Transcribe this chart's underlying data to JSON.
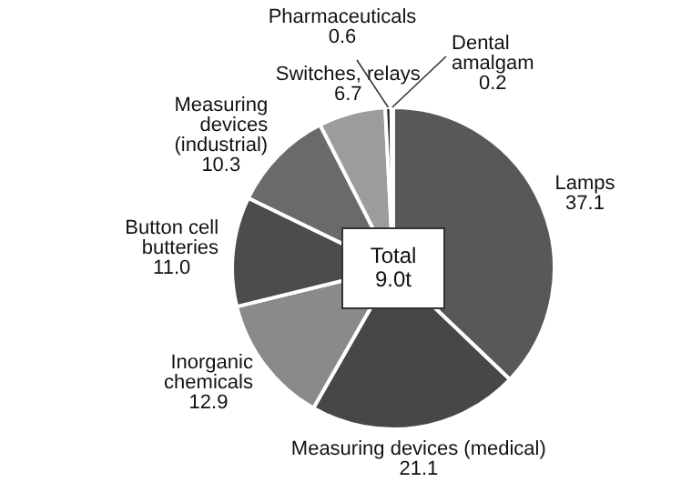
{
  "chart_data": {
    "type": "pie",
    "categories": [
      "Lamps",
      "Measuring devices (medical)",
      "Inorganic chemicals",
      "Button cell butteries",
      "Measuring devices (industrial)",
      "Switches, relays",
      "Pharmaceuticals",
      "Dental amalgam"
    ],
    "values": [
      37.1,
      21.1,
      12.9,
      11.0,
      10.3,
      6.7,
      0.6,
      0.2
    ],
    "colors": [
      "#585858",
      "#474747",
      "#8a8a8a",
      "#4c4c4c",
      "#6a6a6a",
      "#9c9c9c",
      "#222222",
      "#b0b0b0"
    ],
    "value_labels": [
      "37.1",
      "21.1",
      "12.9",
      "11.0",
      "10.3",
      "6.7",
      "0.6",
      "0.2"
    ],
    "annotations": [
      "Total 9.0t"
    ]
  }
}
